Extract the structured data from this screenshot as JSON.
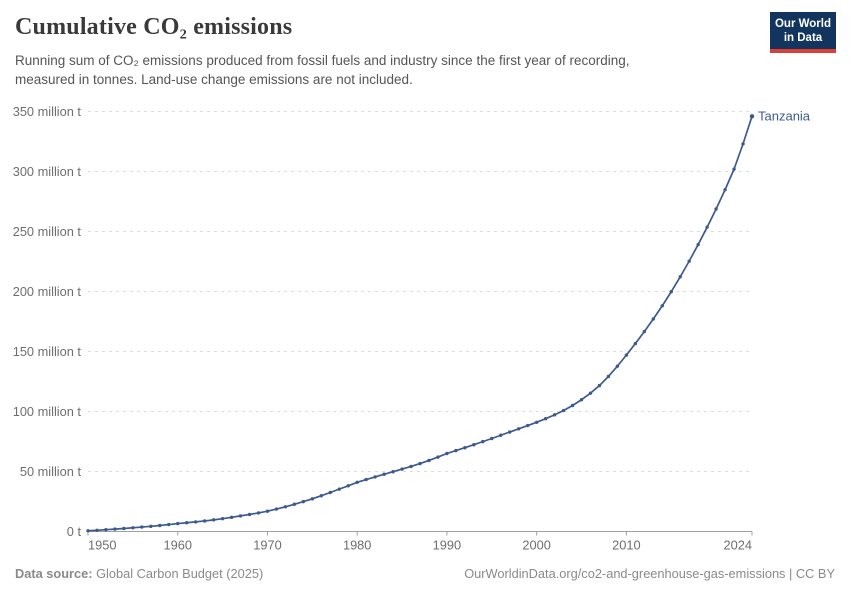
{
  "header": {
    "title": "Cumulative CO₂ emissions",
    "subtitle": "Running sum of CO₂ emissions produced from fossil fuels and industry since the first year of recording, measured in tonnes. Land-use change emissions are not included.",
    "logo": {
      "line1": "Our World",
      "line2": "in Data"
    }
  },
  "footer": {
    "datasource_label": "Data source:",
    "datasource_value": " Global Carbon Budget (2025)",
    "attribution": "OurWorldinData.org/co2-and-greenhouse-gas-emissions | CC BY"
  },
  "colors": {
    "line": "#3d5a8e",
    "grid": "#dcdcdc",
    "axis": "#a0a0a0",
    "axis_text": "#6e6e6e",
    "logo_bg": "#12355f",
    "logo_accent": "#dc3e32"
  },
  "chart_data": {
    "type": "line",
    "title": "Cumulative CO₂ emissions",
    "unit": "tonnes",
    "grid": "horizontal dashed",
    "legend_position": "end-of-line label",
    "xlim": [
      1950,
      2024
    ],
    "ylim": [
      0,
      350
    ],
    "yticks": [
      {
        "value": 0,
        "label": "0 t"
      },
      {
        "value": 50,
        "label": "50 million t"
      },
      {
        "value": 100,
        "label": "100 million t"
      },
      {
        "value": 150,
        "label": "150 million t"
      },
      {
        "value": 200,
        "label": "200 million t"
      },
      {
        "value": 250,
        "label": "250 million t"
      },
      {
        "value": 300,
        "label": "300 million t"
      },
      {
        "value": 350,
        "label": "350 million t"
      }
    ],
    "xticks": [
      {
        "value": 1950,
        "label": "1950"
      },
      {
        "value": 1960,
        "label": "1960"
      },
      {
        "value": 1970,
        "label": "1970"
      },
      {
        "value": 1980,
        "label": "1980"
      },
      {
        "value": 1990,
        "label": "1990"
      },
      {
        "value": 2000,
        "label": "2000"
      },
      {
        "value": 2010,
        "label": "2010"
      },
      {
        "value": 2024,
        "label": "2024"
      }
    ],
    "x": [
      1950,
      1951,
      1952,
      1953,
      1954,
      1955,
      1956,
      1957,
      1958,
      1959,
      1960,
      1961,
      1962,
      1963,
      1964,
      1965,
      1966,
      1967,
      1968,
      1969,
      1970,
      1971,
      1972,
      1973,
      1974,
      1975,
      1976,
      1977,
      1978,
      1979,
      1980,
      1981,
      1982,
      1983,
      1984,
      1985,
      1986,
      1987,
      1988,
      1989,
      1990,
      1991,
      1992,
      1993,
      1994,
      1995,
      1996,
      1997,
      1998,
      1999,
      2000,
      2001,
      2002,
      2003,
      2004,
      2005,
      2006,
      2007,
      2008,
      2009,
      2010,
      2011,
      2012,
      2013,
      2014,
      2015,
      2016,
      2017,
      2018,
      2019,
      2020,
      2021,
      2022,
      2023,
      2024
    ],
    "series": [
      {
        "name": "Tanzania",
        "color": "#3d5a8e",
        "unit": "million t",
        "values": [
          0.6,
          1.0,
          1.5,
          2.0,
          2.5,
          3.1,
          3.7,
          4.3,
          5.0,
          5.8,
          6.6,
          7.3,
          8.0,
          8.8,
          9.7,
          10.7,
          11.8,
          13.0,
          14.2,
          15.5,
          16.9,
          18.7,
          20.6,
          22.7,
          24.9,
          27.2,
          29.8,
          32.5,
          35.3,
          38.1,
          41.0,
          43.3,
          45.5,
          47.7,
          49.8,
          52.0,
          54.2,
          56.6,
          59.2,
          62.0,
          65.0,
          67.4,
          69.8,
          72.3,
          74.9,
          77.5,
          80.2,
          82.9,
          85.6,
          88.3,
          91.0,
          94.0,
          97.2,
          100.8,
          105.0,
          109.8,
          115.3,
          121.6,
          129.2,
          137.8,
          147.0,
          156.6,
          166.6,
          177.1,
          188.1,
          199.8,
          212.2,
          225.3,
          239.1,
          253.6,
          268.8,
          284.8,
          302.0,
          323.0,
          346.0
        ]
      }
    ]
  }
}
